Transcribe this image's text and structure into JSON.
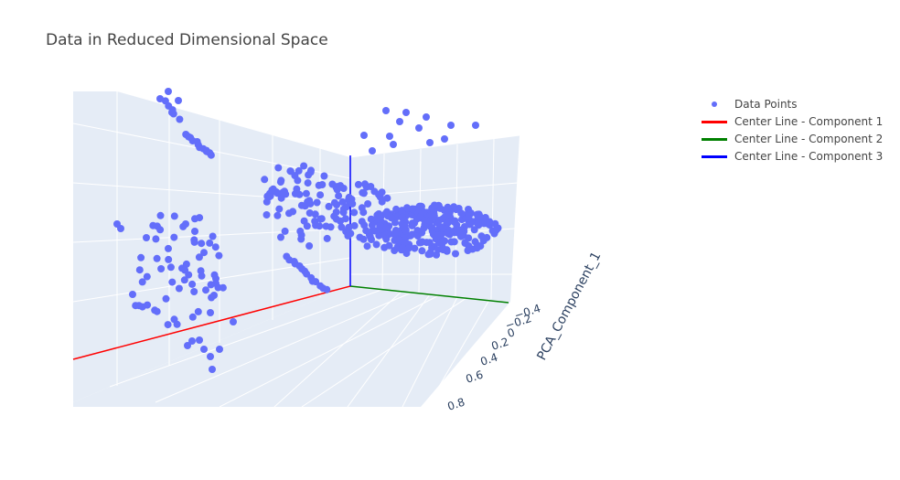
{
  "title": "Data in Reduced Dimensional Space",
  "colors": {
    "points": "#636efa",
    "comp1": "#ff0000",
    "comp2": "#008000",
    "comp3": "#0000ff",
    "plane": "#e5ecf6",
    "grid": "#ffffff"
  },
  "legend": [
    {
      "label": "Data Points",
      "kind": "dot",
      "color": "#636efa"
    },
    {
      "label": "Center Line - Component 1",
      "kind": "line",
      "color": "#ff0000"
    },
    {
      "label": "Center Line - Component 2",
      "kind": "line",
      "color": "#008000"
    },
    {
      "label": "Center Line - Component 3",
      "kind": "line",
      "color": "#0000ff"
    }
  ],
  "axes": {
    "y_title": "PCA_Component_1",
    "y_ticks": [
      "−0.4",
      "−0.2",
      "0",
      "0.2",
      "0.4",
      "0.6",
      "0.8"
    ]
  },
  "chart_data": {
    "type": "scatter",
    "title": "Data in Reduced Dimensional Space",
    "series": [
      {
        "name": "Data Points",
        "note_count": "clusters of PCA-projected points"
      },
      {
        "name": "Center Line - Component 1"
      },
      {
        "name": "Center Line - Component 2"
      },
      {
        "name": "Center Line - Component 3"
      }
    ],
    "ylabel": "PCA_Component_1",
    "yticks": [
      -0.4,
      -0.2,
      0,
      0.2,
      0.4,
      0.6,
      0.8
    ],
    "legend_position": "top-right",
    "grid": true
  }
}
